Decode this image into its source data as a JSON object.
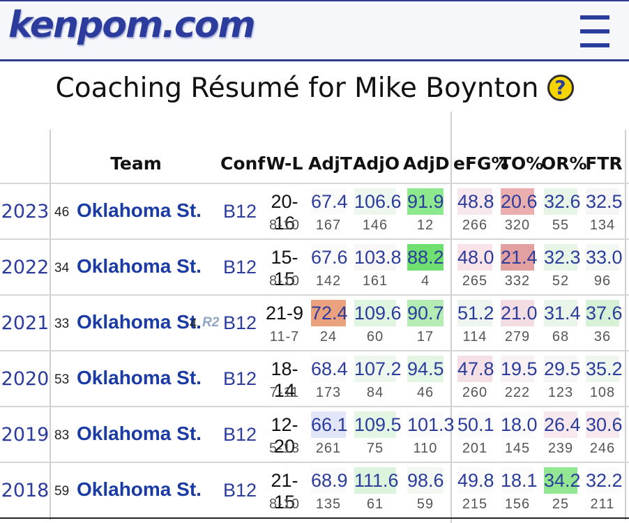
{
  "site": {
    "logo": "kenpom.com",
    "menu_icon": "hamburger-menu-icon"
  },
  "page": {
    "title": "Coaching Résumé for Mike Boynton",
    "help_symbol": "?"
  },
  "table": {
    "headers": {
      "team": "Team",
      "conf": "Conf",
      "wl": "W-L",
      "adjt": "AdjT",
      "adjo": "AdjO",
      "adjd": "AdjD",
      "efg": "eFG%",
      "to": "TO%",
      "or": "OR%",
      "ftr": "FTR"
    },
    "rows": [
      {
        "year": "2023",
        "rank": "46",
        "team": "Oklahoma St.",
        "seed": "",
        "round": "",
        "conf": "B12",
        "wl": "20-16",
        "conf_wl": "8-10",
        "adjt": "67.4",
        "adjt_rk": "167",
        "adjo": "106.6",
        "adjo_rk": "146",
        "adjd": "91.9",
        "adjd_rk": "12",
        "efg": "48.8",
        "efg_rk": "266",
        "to": "20.6",
        "to_rk": "320",
        "or": "32.6",
        "or_rk": "55",
        "ftr": "32.5",
        "ftr_rk": "134"
      },
      {
        "year": "2022",
        "rank": "34",
        "team": "Oklahoma St.",
        "seed": "",
        "round": "",
        "conf": "B12",
        "wl": "15-15",
        "conf_wl": "8-10",
        "adjt": "67.6",
        "adjt_rk": "142",
        "adjo": "103.8",
        "adjo_rk": "161",
        "adjd": "88.2",
        "adjd_rk": "4",
        "efg": "48.0",
        "efg_rk": "265",
        "to": "21.4",
        "to_rk": "332",
        "or": "32.3",
        "or_rk": "52",
        "ftr": "33.0",
        "ftr_rk": "96"
      },
      {
        "year": "2021",
        "rank": "33",
        "team": "Oklahoma St.",
        "seed": "4",
        "round": "R2",
        "conf": "B12",
        "wl": "21-9",
        "conf_wl": "11-7",
        "adjt": "72.4",
        "adjt_rk": "24",
        "adjo": "109.6",
        "adjo_rk": "60",
        "adjd": "90.7",
        "adjd_rk": "17",
        "efg": "51.2",
        "efg_rk": "114",
        "to": "21.0",
        "to_rk": "279",
        "or": "31.4",
        "or_rk": "68",
        "ftr": "37.6",
        "ftr_rk": "36"
      },
      {
        "year": "2020",
        "rank": "53",
        "team": "Oklahoma St.",
        "seed": "",
        "round": "",
        "conf": "B12",
        "wl": "18-14",
        "conf_wl": "7-11",
        "adjt": "68.4",
        "adjt_rk": "173",
        "adjo": "107.2",
        "adjo_rk": "84",
        "adjd": "94.5",
        "adjd_rk": "46",
        "efg": "47.8",
        "efg_rk": "260",
        "to": "19.5",
        "to_rk": "222",
        "or": "29.5",
        "or_rk": "123",
        "ftr": "35.2",
        "ftr_rk": "108"
      },
      {
        "year": "2019",
        "rank": "83",
        "team": "Oklahoma St.",
        "seed": "",
        "round": "",
        "conf": "B12",
        "wl": "12-20",
        "conf_wl": "5-13",
        "adjt": "66.1",
        "adjt_rk": "261",
        "adjo": "109.5",
        "adjo_rk": "75",
        "adjd": "101.3",
        "adjd_rk": "110",
        "efg": "50.1",
        "efg_rk": "201",
        "to": "18.0",
        "to_rk": "145",
        "or": "26.4",
        "or_rk": "239",
        "ftr": "30.6",
        "ftr_rk": "246"
      },
      {
        "year": "2018",
        "rank": "59",
        "team": "Oklahoma St.",
        "seed": "",
        "round": "",
        "conf": "B12",
        "wl": "21-15",
        "conf_wl": "8-10",
        "adjt": "68.9",
        "adjt_rk": "135",
        "adjo": "111.6",
        "adjo_rk": "61",
        "adjd": "98.6",
        "adjd_rk": "59",
        "efg": "49.8",
        "efg_rk": "215",
        "to": "18.1",
        "to_rk": "156",
        "or": "34.2",
        "or_rk": "25",
        "ftr": "32.2",
        "ftr_rk": "211"
      }
    ]
  }
}
